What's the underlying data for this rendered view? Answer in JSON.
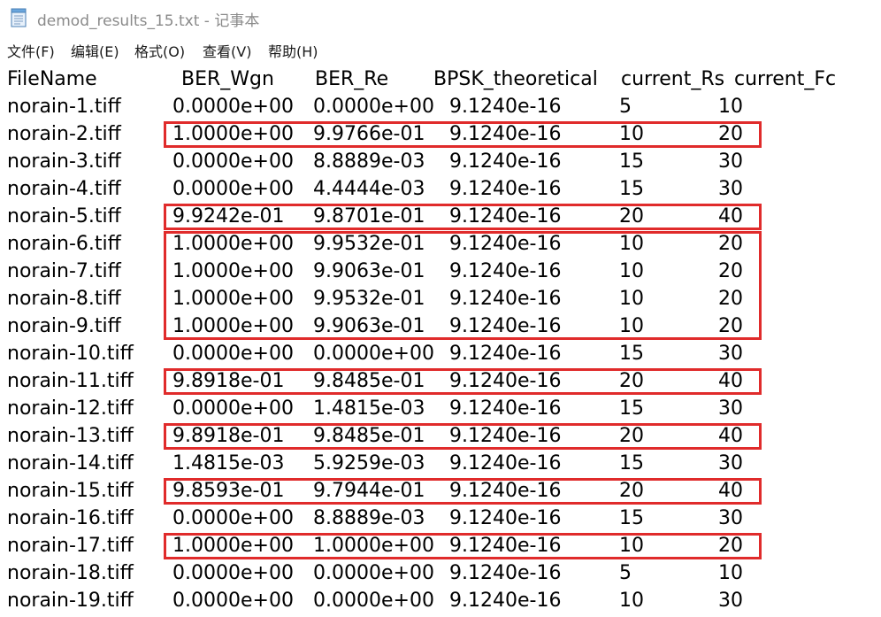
{
  "window": {
    "title": "demod_results_15.txt - 记事本"
  },
  "menu": [
    "文件(F)",
    "编辑(E)",
    "格式(O)",
    "查看(V)",
    "帮助(H)"
  ],
  "table": {
    "headers": [
      "FileName",
      "BER_Wgn",
      "BER_Re",
      "BPSK_theoretical",
      "current_Rs",
      "current_Fc"
    ],
    "rows": [
      [
        "norain-1.tiff",
        "0.0000e+00",
        "0.0000e+00",
        "9.1240e-16",
        "5",
        "10"
      ],
      [
        "norain-2.tiff",
        "1.0000e+00",
        "9.9766e-01",
        "9.1240e-16",
        "10",
        "20"
      ],
      [
        "norain-3.tiff",
        "0.0000e+00",
        "8.8889e-03",
        "9.1240e-16",
        "15",
        "30"
      ],
      [
        "norain-4.tiff",
        "0.0000e+00",
        "4.4444e-03",
        "9.1240e-16",
        "15",
        "30"
      ],
      [
        "norain-5.tiff",
        "9.9242e-01",
        "9.8701e-01",
        "9.1240e-16",
        "20",
        "40"
      ],
      [
        "norain-6.tiff",
        "1.0000e+00",
        "9.9532e-01",
        "9.1240e-16",
        "10",
        "20"
      ],
      [
        "norain-7.tiff",
        "1.0000e+00",
        "9.9063e-01",
        "9.1240e-16",
        "10",
        "20"
      ],
      [
        "norain-8.tiff",
        "1.0000e+00",
        "9.9532e-01",
        "9.1240e-16",
        "10",
        "20"
      ],
      [
        "norain-9.tiff",
        "1.0000e+00",
        "9.9063e-01",
        "9.1240e-16",
        "10",
        "20"
      ],
      [
        "norain-10.tiff",
        "0.0000e+00",
        "0.0000e+00",
        "9.1240e-16",
        "15",
        "30"
      ],
      [
        "norain-11.tiff",
        "9.8918e-01",
        "9.8485e-01",
        "9.1240e-16",
        "20",
        "40"
      ],
      [
        "norain-12.tiff",
        "0.0000e+00",
        "1.4815e-03",
        "9.1240e-16",
        "15",
        "30"
      ],
      [
        "norain-13.tiff",
        "9.8918e-01",
        "9.8485e-01",
        "9.1240e-16",
        "20",
        "40"
      ],
      [
        "norain-14.tiff",
        "1.4815e-03",
        "5.9259e-03",
        "9.1240e-16",
        "15",
        "30"
      ],
      [
        "norain-15.tiff",
        "9.8593e-01",
        "9.7944e-01",
        "9.1240e-16",
        "20",
        "40"
      ],
      [
        "norain-16.tiff",
        "0.0000e+00",
        "8.8889e-03",
        "9.1240e-16",
        "15",
        "30"
      ],
      [
        "norain-17.tiff",
        "1.0000e+00",
        "1.0000e+00",
        "9.1240e-16",
        "10",
        "20"
      ],
      [
        "norain-18.tiff",
        "0.0000e+00",
        "0.0000e+00",
        "9.1240e-16",
        "5",
        "10"
      ],
      [
        "norain-19.tiff",
        "0.0000e+00",
        "0.0000e+00",
        "9.1240e-16",
        "10",
        "30"
      ]
    ]
  },
  "annotations": {
    "highlight_color": "#e02b2b",
    "highlighted_files": [
      "norain-2.tiff",
      "norain-5.tiff",
      "norain-6.tiff",
      "norain-7.tiff",
      "norain-8.tiff",
      "norain-9.tiff",
      "norain-11.tiff",
      "norain-13.tiff",
      "norain-15.tiff",
      "norain-17.tiff"
    ]
  }
}
